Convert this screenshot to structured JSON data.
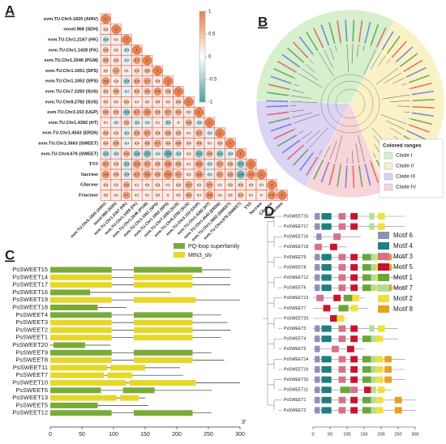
{
  "panel_a": {
    "letter": "A",
    "variables": [
      "evm.TU.Chr5.1820 (AINV)",
      "novel.968 (SDH)",
      "evm.TU.Chr1.2167 (HK)",
      "evm.TU.Chr1.1428 (FK)",
      "evm.TU.Chr1.2546 (PGM)",
      "evm.TU.Chr1.1051 (SPS)",
      "evm.TU.Chr1.1052 (SPS)",
      "evm.TU.Chr7.2283 (SUS)",
      "evm.TU.Chr8.2782 (SUS)",
      "evm.TU.Chr3.153 (UGP)",
      "evm.TU.Chr1.4392 (HT)",
      "evm.TU.Chr1.4543 (ERD6)",
      "evm.TU.Chr1.3663 (SWEET)",
      "evm.TU.Chr4.676 (SWEET)",
      "TSS",
      "Sucrose",
      "Glucose",
      "Fructose"
    ],
    "matrix": [
      [
        1
      ],
      [
        0.3,
        1
      ],
      [
        -0.4,
        0.1,
        1
      ],
      [
        0.5,
        0.2,
        -0.3,
        1
      ],
      [
        0.6,
        0.4,
        -0.2,
        0.7,
        1
      ],
      [
        0.2,
        0.7,
        0.1,
        0.4,
        0.5,
        1
      ],
      [
        0.8,
        0.3,
        -0.5,
        0.6,
        0.7,
        0.3,
        1
      ],
      [
        0.4,
        0.6,
        -0.1,
        0.5,
        0.6,
        0.8,
        0.5,
        1
      ],
      [
        0.3,
        0.2,
        0.4,
        0.1,
        0.2,
        0.3,
        0.2,
        0.4,
        1
      ],
      [
        0.6,
        0.5,
        -0.6,
        0.7,
        0.8,
        0.5,
        0.7,
        0.6,
        0.2,
        1
      ],
      [
        0.1,
        -0.2,
        0.5,
        -0.3,
        -0.2,
        0.1,
        -0.4,
        0,
        0.6,
        -0.3,
        1
      ],
      [
        0.5,
        0.3,
        -0.3,
        0.6,
        0.7,
        0.4,
        0.6,
        0.5,
        0.1,
        0.7,
        -0.2,
        1
      ],
      [
        0.4,
        0.6,
        -0.1,
        0.3,
        0.5,
        0.7,
        0.4,
        0.6,
        0.3,
        0.5,
        0.1,
        0.4,
        1
      ],
      [
        -0.5,
        -0.3,
        0.6,
        -0.6,
        -0.7,
        -0.2,
        -0.8,
        -0.4,
        0.2,
        -0.7,
        0.6,
        -0.6,
        -0.3,
        1
      ],
      [
        0.7,
        0.4,
        -0.5,
        0.8,
        0.7,
        0.5,
        0.8,
        0.6,
        0.1,
        0.8,
        -0.3,
        0.7,
        0.5,
        -0.7,
        1
      ],
      [
        0.8,
        0.5,
        -0.4,
        0.7,
        0.8,
        0.6,
        0.9,
        0.7,
        0.2,
        0.8,
        -0.2,
        0.7,
        0.6,
        -0.8,
        0.9,
        1
      ],
      [
        0.3,
        0.2,
        0.6,
        0.1,
        0.2,
        0.3,
        0.1,
        0.3,
        0.7,
        0.2,
        0.7,
        0.1,
        0.3,
        0.4,
        0.2,
        0.1,
        1
      ],
      [
        0.2,
        0.1,
        0.7,
        0.1,
        0.1,
        0.2,
        0,
        0.2,
        0.6,
        0.1,
        0.8,
        0.1,
        0.2,
        0.5,
        0.1,
        0,
        0.9,
        1
      ]
    ],
    "colorbar_lim": [
      -1,
      1
    ],
    "colorbar_ticks": [
      1,
      0.5,
      0,
      -0.5,
      -1
    ],
    "positive_color": "#e8804a",
    "negative_color": "#4aa3a3"
  },
  "panel_b": {
    "letter": "B",
    "legend_title": "Colored ranges",
    "clades": [
      {
        "name": "Clade I",
        "color": "#d6efcc"
      },
      {
        "name": "Clade II",
        "color": "#fbf1c6"
      },
      {
        "name": "Clade III",
        "color": "#ddd3f3"
      },
      {
        "name": "Clade IV",
        "color": "#f7d5d8"
      }
    ]
  },
  "panel_c": {
    "letter": "C",
    "legend": [
      {
        "name": "PQ-loop superfamily",
        "color": "#7aab3a"
      },
      {
        "name": "MtN3_slv",
        "color": "#e6d82a"
      }
    ],
    "xlim": [
      0,
      300
    ],
    "xticks": [
      0,
      50,
      100,
      150,
      200,
      250,
      300
    ],
    "end_label": "3'",
    "genes": [
      {
        "name": "PsSWEET15",
        "length": 285,
        "domains": [
          [
            0,
            97,
            0
          ],
          [
            132,
            240,
            0
          ]
        ]
      },
      {
        "name": "PsSWEET14",
        "length": 285,
        "domains": [
          [
            0,
            97,
            1
          ],
          [
            132,
            225,
            1
          ]
        ]
      },
      {
        "name": "PsSWEET17",
        "length": 285,
        "domains": [
          [
            0,
            97,
            1
          ],
          [
            132,
            225,
            1
          ]
        ]
      },
      {
        "name": "PsSWEET16",
        "length": 190,
        "domains": [
          [
            0,
            63,
            0
          ]
        ]
      },
      {
        "name": "PsSWEET19",
        "length": 300,
        "domains": [
          [
            0,
            97,
            1
          ],
          [
            132,
            230,
            1
          ]
        ]
      },
      {
        "name": "PsSWEET18",
        "length": 120,
        "domains": [
          [
            0,
            75,
            0
          ]
        ]
      },
      {
        "name": "PsSWEET4",
        "length": 270,
        "domains": [
          [
            0,
            97,
            0
          ],
          [
            132,
            225,
            0
          ]
        ]
      },
      {
        "name": "PsSWEET3",
        "length": 280,
        "domains": [
          [
            0,
            97,
            1
          ],
          [
            132,
            225,
            1
          ]
        ]
      },
      {
        "name": "PsSWEET2",
        "length": 285,
        "domains": [
          [
            0,
            97,
            1
          ],
          [
            132,
            225,
            1
          ]
        ]
      },
      {
        "name": "PsSWEET1",
        "length": 270,
        "domains": [
          [
            0,
            97,
            1
          ],
          [
            132,
            225,
            1
          ]
        ]
      },
      {
        "name": "PsSWEET20",
        "length": 95,
        "domains": [
          [
            5,
            55,
            0
          ]
        ]
      },
      {
        "name": "PsSWEET9",
        "length": 255,
        "domains": [
          [
            0,
            97,
            0
          ],
          [
            132,
            225,
            0
          ]
        ]
      },
      {
        "name": "PsSWEET8",
        "length": 275,
        "domains": [
          [
            0,
            97,
            1
          ],
          [
            132,
            225,
            1
          ]
        ]
      },
      {
        "name": "PsSWEET11",
        "length": 205,
        "domains": [
          [
            0,
            90,
            1
          ],
          [
            95,
            150,
            1
          ]
        ]
      },
      {
        "name": "PsSWEET7",
        "length": 210,
        "domains": [
          [
            0,
            85,
            1
          ],
          [
            90,
            130,
            1
          ]
        ]
      },
      {
        "name": "PsSWEET10",
        "length": 300,
        "domains": [
          [
            0,
            120,
            1
          ],
          [
            125,
            230,
            1
          ]
        ]
      },
      {
        "name": "PsSWEET6",
        "length": 255,
        "domains": [
          [
            0,
            80,
            0
          ],
          [
            115,
            165,
            0
          ]
        ]
      },
      {
        "name": "PsSWEET13",
        "length": 150,
        "domains": [
          [
            0,
            105,
            1
          ],
          [
            110,
            140,
            1
          ]
        ]
      },
      {
        "name": "PsSWEET5",
        "length": 155,
        "domains": [
          [
            0,
            75,
            0
          ]
        ]
      },
      {
        "name": "PsSWEET12",
        "length": 255,
        "domains": [
          [
            0,
            97,
            0
          ],
          [
            132,
            225,
            0
          ]
        ]
      }
    ]
  },
  "panel_d": {
    "letter": "D",
    "motifs": [
      {
        "name": "Motif 6",
        "color": "#8f90b8",
        "length": 15
      },
      {
        "name": "Motif 4",
        "color": "#1f7f80",
        "length": 29
      },
      {
        "name": "Motif 3",
        "color": "#d4728c",
        "length": 21
      },
      {
        "name": "Motif 5",
        "color": "#c8142e",
        "length": 21
      },
      {
        "name": "Motif 1",
        "color": "#6aa63a",
        "length": 29
      },
      {
        "name": "Motif 7",
        "color": "#b3dd94",
        "length": 15
      },
      {
        "name": "Motif 2",
        "color": "#efe040",
        "length": 21
      },
      {
        "name": "Motif 8",
        "color": "#e8a020",
        "length": 21
      }
    ],
    "xlim": [
      0,
      300
    ],
    "xticks": [
      0,
      50,
      100,
      150,
      200,
      250,
      300
    ],
    "genes": [
      {
        "name": "PsSWEET15",
        "length": 270,
        "sites": [
          [
            0,
            5
          ],
          [
            1,
            25
          ],
          [
            2,
            75
          ],
          [
            3,
            110
          ],
          [
            5,
            165
          ],
          [
            6,
            190
          ]
        ]
      },
      {
        "name": "PsSWEET17",
        "length": 270,
        "sites": [
          [
            0,
            5
          ],
          [
            1,
            25
          ],
          [
            2,
            75
          ],
          [
            3,
            110
          ],
          [
            5,
            165
          ],
          [
            6,
            190
          ]
        ]
      },
      {
        "name": "PsSWEET16",
        "length": 140,
        "sites": [
          [
            0,
            10
          ],
          [
            2,
            60
          ]
        ]
      },
      {
        "name": "PsSWEET18",
        "length": 100,
        "sites": [
          [
            2,
            5
          ],
          [
            3,
            50
          ]
        ]
      },
      {
        "name": "PsSWEET9",
        "length": 270,
        "sites": [
          [
            0,
            5
          ],
          [
            1,
            25
          ],
          [
            2,
            75
          ],
          [
            3,
            110
          ],
          [
            4,
            145
          ],
          [
            5,
            170
          ],
          [
            6,
            185
          ],
          [
            7,
            210
          ]
        ]
      },
      {
        "name": "PsSWEET8",
        "length": 260,
        "sites": [
          [
            0,
            5
          ],
          [
            1,
            25
          ],
          [
            2,
            75
          ],
          [
            3,
            110
          ],
          [
            4,
            145
          ],
          [
            5,
            170
          ],
          [
            6,
            185
          ],
          [
            7,
            210
          ]
        ]
      },
      {
        "name": "PsSWEET12",
        "length": 260,
        "sites": [
          [
            0,
            5
          ],
          [
            1,
            25
          ],
          [
            2,
            75
          ],
          [
            3,
            110
          ],
          [
            4,
            145
          ],
          [
            5,
            170
          ],
          [
            6,
            185
          ]
        ]
      },
      {
        "name": "PsSWEET6",
        "length": 270,
        "sites": [
          [
            0,
            5
          ],
          [
            1,
            25
          ],
          [
            2,
            75
          ],
          [
            3,
            110
          ],
          [
            4,
            145
          ],
          [
            5,
            170
          ],
          [
            6,
            185
          ],
          [
            7,
            210
          ]
        ]
      },
      {
        "name": "PsSWEET13",
        "length": 150,
        "sites": [
          [
            2,
            10
          ],
          [
            3,
            60
          ],
          [
            4,
            90
          ],
          [
            6,
            115
          ]
        ]
      },
      {
        "name": "PsSWEET7",
        "length": 160,
        "sites": [
          [
            3,
            30
          ],
          [
            4,
            75
          ],
          [
            6,
            110
          ]
        ]
      },
      {
        "name": "PsSWEET20",
        "length": 100,
        "sites": [
          [
            3,
            50
          ],
          [
            6,
            70
          ]
        ]
      },
      {
        "name": "PsSWEET3",
        "length": 250,
        "sites": [
          [
            0,
            5
          ],
          [
            1,
            25
          ],
          [
            2,
            75
          ],
          [
            3,
            110
          ],
          [
            5,
            165
          ],
          [
            6,
            190
          ]
        ]
      },
      {
        "name": "PsSWEET4",
        "length": 250,
        "sites": [
          [
            0,
            5
          ],
          [
            1,
            25
          ],
          [
            2,
            75
          ],
          [
            3,
            110
          ],
          [
            4,
            145
          ],
          [
            5,
            170
          ],
          [
            6,
            185
          ]
        ]
      },
      {
        "name": "PsSWEET5",
        "length": 150,
        "sites": [
          [
            0,
            5
          ],
          [
            2,
            55
          ],
          [
            3,
            100
          ]
        ]
      },
      {
        "name": "PsSWEET14",
        "length": 270,
        "sites": [
          [
            0,
            5
          ],
          [
            1,
            25
          ],
          [
            2,
            75
          ],
          [
            3,
            110
          ],
          [
            4,
            145
          ],
          [
            5,
            170
          ],
          [
            6,
            185
          ],
          [
            7,
            210
          ]
        ]
      },
      {
        "name": "PsSWEET19",
        "length": 270,
        "sites": [
          [
            0,
            5
          ],
          [
            1,
            25
          ],
          [
            2,
            75
          ],
          [
            3,
            110
          ],
          [
            4,
            145
          ],
          [
            5,
            170
          ],
          [
            6,
            185
          ],
          [
            7,
            210
          ]
        ]
      },
      {
        "name": "PsSWEET10",
        "length": 270,
        "sites": [
          [
            0,
            5
          ],
          [
            1,
            25
          ],
          [
            2,
            75
          ],
          [
            3,
            110
          ],
          [
            4,
            145
          ],
          [
            5,
            170
          ],
          [
            6,
            185
          ],
          [
            7,
            210
          ]
        ]
      },
      {
        "name": "PsSWEET11",
        "length": 230,
        "sites": [
          [
            0,
            5
          ],
          [
            1,
            25
          ],
          [
            4,
            80
          ],
          [
            2,
            110
          ],
          [
            3,
            150
          ],
          [
            5,
            170
          ],
          [
            6,
            190
          ]
        ]
      },
      {
        "name": "PsSWEET1",
        "length": 300,
        "sites": [
          [
            0,
            5
          ],
          [
            1,
            25
          ],
          [
            2,
            75
          ],
          [
            3,
            110
          ],
          [
            4,
            145
          ],
          [
            5,
            170
          ],
          [
            6,
            185
          ],
          [
            7,
            240
          ]
        ]
      },
      {
        "name": "PsSWEET2",
        "length": 300,
        "sites": [
          [
            0,
            5
          ],
          [
            1,
            25
          ],
          [
            2,
            75
          ],
          [
            3,
            110
          ],
          [
            4,
            145
          ],
          [
            5,
            170
          ],
          [
            6,
            185
          ],
          [
            7,
            240
          ]
        ]
      }
    ]
  }
}
